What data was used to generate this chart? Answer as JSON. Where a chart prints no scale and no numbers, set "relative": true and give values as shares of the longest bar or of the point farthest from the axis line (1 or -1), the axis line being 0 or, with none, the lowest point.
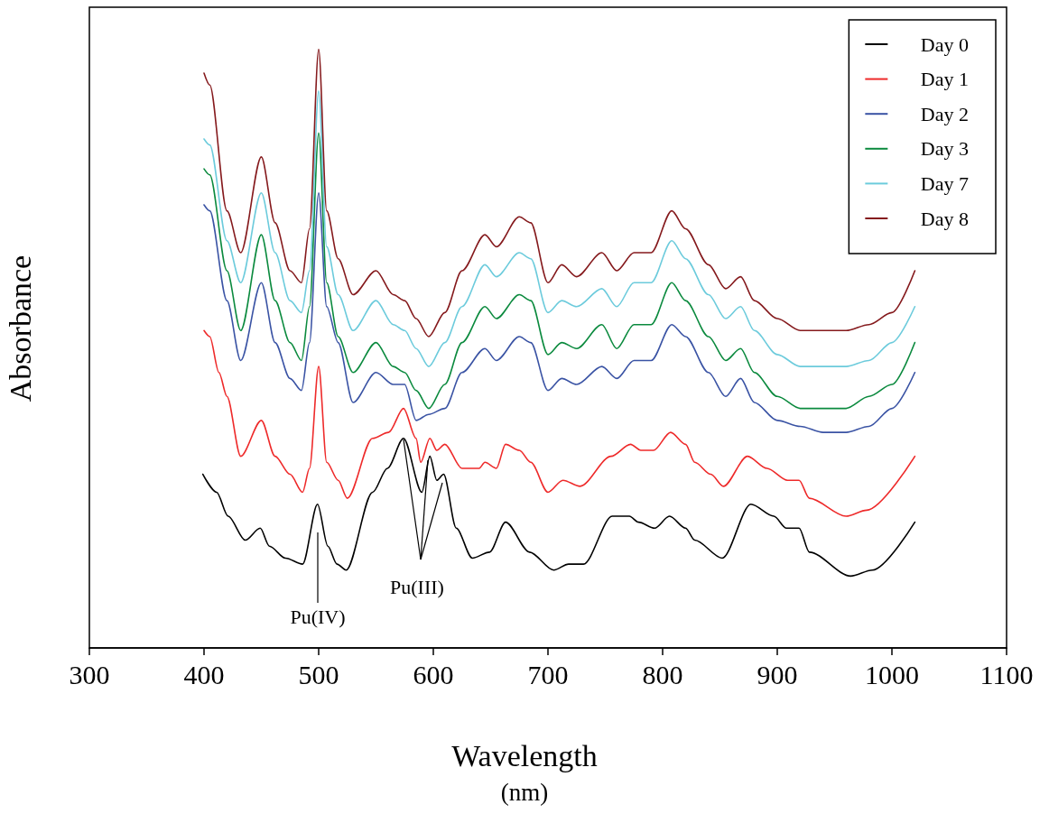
{
  "chart_data": {
    "type": "line",
    "relative": true,
    "xlabel": "Wavelength\n(nm)",
    "ylabel": "Absorbance",
    "xlim": [
      300,
      1100
    ],
    "xticks": [
      300,
      400,
      500,
      600,
      700,
      800,
      900,
      1000,
      1100
    ],
    "grid": false,
    "legend": "top right",
    "annotations": [
      "Pu(IV)",
      "Pu(III)"
    ],
    "series": [
      {
        "name": "Day 0",
        "color": "#000000",
        "x": [
          399,
          411,
          421,
          436,
          449,
          457,
          471,
          486,
          499,
          508,
          516,
          524,
          547,
          560,
          574,
          590,
          597,
          603,
          609,
          620,
          634,
          649,
          663,
          684,
          705,
          718,
          731,
          756,
          771,
          779,
          793,
          806,
          820,
          828,
          852,
          877,
          897,
          908,
          919,
          928,
          964,
          983,
          1020
        ],
        "values": [
          0.29,
          0.26,
          0.22,
          0.18,
          0.2,
          0.17,
          0.15,
          0.14,
          0.24,
          0.17,
          0.14,
          0.13,
          0.26,
          0.3,
          0.35,
          0.26,
          0.32,
          0.28,
          0.29,
          0.2,
          0.15,
          0.16,
          0.21,
          0.16,
          0.13,
          0.14,
          0.14,
          0.22,
          0.22,
          0.21,
          0.2,
          0.22,
          0.2,
          0.18,
          0.15,
          0.24,
          0.22,
          0.2,
          0.2,
          0.16,
          0.12,
          0.13,
          0.21
        ]
      },
      {
        "name": "Day 1",
        "color": "#ee2a2a",
        "x": [
          400,
          405,
          413,
          420,
          432,
          450,
          462,
          475,
          486,
          492,
          500,
          507,
          517,
          525,
          547,
          561,
          574,
          585,
          589,
          597,
          603,
          610,
          625,
          640,
          645,
          655,
          663,
          675,
          685,
          700,
          713,
          728,
          755,
          772,
          781,
          792,
          807,
          820,
          828,
          842,
          853,
          874,
          891,
          909,
          919,
          928,
          960,
          978,
          1020
        ],
        "values": [
          0.53,
          0.52,
          0.46,
          0.42,
          0.32,
          0.38,
          0.32,
          0.29,
          0.26,
          0.3,
          0.47,
          0.31,
          0.28,
          0.25,
          0.35,
          0.36,
          0.4,
          0.35,
          0.31,
          0.35,
          0.33,
          0.34,
          0.3,
          0.3,
          0.31,
          0.3,
          0.34,
          0.33,
          0.31,
          0.26,
          0.28,
          0.27,
          0.32,
          0.34,
          0.33,
          0.33,
          0.36,
          0.34,
          0.31,
          0.29,
          0.27,
          0.32,
          0.3,
          0.28,
          0.28,
          0.25,
          0.22,
          0.23,
          0.32
        ]
      },
      {
        "name": "Day 2",
        "color": "#3a53a4",
        "x": [
          400,
          405,
          420,
          432,
          450,
          462,
          475,
          485,
          492,
          500,
          507,
          517,
          530,
          550,
          565,
          575,
          585,
          596,
          610,
          625,
          645,
          655,
          675,
          685,
          700,
          712,
          725,
          747,
          760,
          775,
          790,
          808,
          820,
          840,
          855,
          868,
          880,
          900,
          920,
          940,
          960,
          980,
          1000,
          1020
        ],
        "values": [
          0.74,
          0.73,
          0.58,
          0.48,
          0.61,
          0.51,
          0.45,
          0.43,
          0.51,
          0.76,
          0.57,
          0.51,
          0.41,
          0.46,
          0.44,
          0.44,
          0.38,
          0.39,
          0.4,
          0.46,
          0.5,
          0.48,
          0.52,
          0.51,
          0.43,
          0.45,
          0.44,
          0.47,
          0.45,
          0.48,
          0.48,
          0.54,
          0.52,
          0.46,
          0.42,
          0.45,
          0.41,
          0.38,
          0.37,
          0.36,
          0.36,
          0.37,
          0.4,
          0.46
        ]
      },
      {
        "name": "Day 3",
        "color": "#0b8a3e",
        "x": [
          400,
          405,
          420,
          432,
          450,
          462,
          475,
          485,
          492,
          500,
          507,
          517,
          530,
          550,
          565,
          575,
          585,
          596,
          610,
          625,
          645,
          655,
          675,
          685,
          700,
          712,
          725,
          747,
          760,
          775,
          790,
          808,
          820,
          840,
          855,
          868,
          880,
          900,
          920,
          940,
          960,
          980,
          1000,
          1020
        ],
        "values": [
          0.8,
          0.79,
          0.63,
          0.53,
          0.69,
          0.58,
          0.51,
          0.48,
          0.57,
          0.86,
          0.61,
          0.52,
          0.46,
          0.51,
          0.47,
          0.46,
          0.43,
          0.4,
          0.44,
          0.51,
          0.57,
          0.55,
          0.59,
          0.58,
          0.49,
          0.51,
          0.5,
          0.54,
          0.5,
          0.54,
          0.54,
          0.61,
          0.58,
          0.52,
          0.48,
          0.5,
          0.46,
          0.42,
          0.4,
          0.4,
          0.4,
          0.42,
          0.44,
          0.51
        ]
      },
      {
        "name": "Day 7",
        "color": "#6ccbdc",
        "x": [
          400,
          405,
          420,
          432,
          450,
          462,
          475,
          485,
          492,
          500,
          507,
          517,
          530,
          550,
          565,
          575,
          585,
          596,
          610,
          625,
          645,
          655,
          675,
          685,
          700,
          712,
          725,
          747,
          760,
          775,
          790,
          808,
          820,
          840,
          855,
          868,
          880,
          900,
          920,
          940,
          960,
          980,
          1000,
          1020
        ],
        "values": [
          0.85,
          0.84,
          0.68,
          0.61,
          0.76,
          0.66,
          0.58,
          0.56,
          0.63,
          0.93,
          0.67,
          0.59,
          0.53,
          0.58,
          0.54,
          0.53,
          0.5,
          0.47,
          0.51,
          0.57,
          0.64,
          0.62,
          0.66,
          0.65,
          0.56,
          0.58,
          0.57,
          0.6,
          0.57,
          0.61,
          0.61,
          0.68,
          0.65,
          0.59,
          0.55,
          0.57,
          0.53,
          0.49,
          0.47,
          0.47,
          0.47,
          0.48,
          0.51,
          0.57
        ]
      },
      {
        "name": "Day 8",
        "color": "#851a1d",
        "x": [
          400,
          405,
          420,
          432,
          450,
          462,
          475,
          485,
          492,
          500,
          507,
          517,
          530,
          550,
          565,
          575,
          585,
          596,
          610,
          625,
          645,
          655,
          675,
          685,
          700,
          712,
          725,
          747,
          760,
          775,
          790,
          808,
          820,
          840,
          855,
          868,
          880,
          900,
          920,
          940,
          960,
          980,
          1000,
          1020
        ],
        "values": [
          0.96,
          0.94,
          0.73,
          0.66,
          0.82,
          0.71,
          0.63,
          0.61,
          0.7,
          1.0,
          0.73,
          0.65,
          0.59,
          0.63,
          0.59,
          0.58,
          0.55,
          0.52,
          0.56,
          0.63,
          0.69,
          0.67,
          0.72,
          0.71,
          0.61,
          0.64,
          0.62,
          0.66,
          0.63,
          0.66,
          0.66,
          0.73,
          0.7,
          0.64,
          0.6,
          0.62,
          0.58,
          0.55,
          0.53,
          0.53,
          0.53,
          0.54,
          0.56,
          0.63
        ]
      }
    ]
  }
}
